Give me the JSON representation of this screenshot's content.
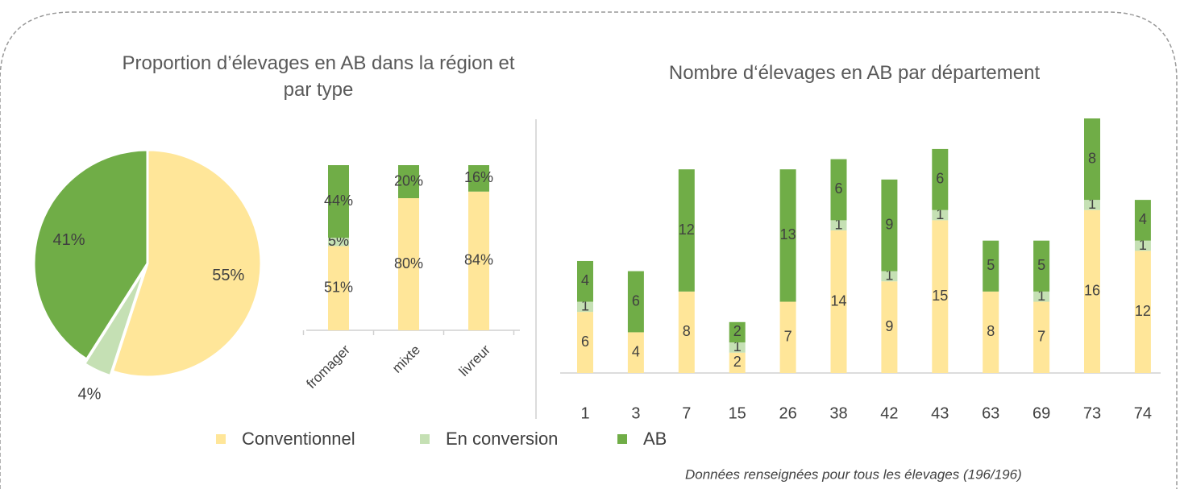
{
  "chart_data": [
    {
      "type": "pie",
      "title": "Proportion d’élevages en AB dans la région et par type",
      "values": [
        55,
        4,
        41
      ],
      "value_labels": [
        "55%",
        "4%",
        "41%"
      ],
      "colors": [
        "#ffe699",
        "#c5e0b4",
        "#70ad47"
      ]
    },
    {
      "type": "stacked_bar",
      "categories": [
        "fromager",
        "mixte",
        "livreur"
      ],
      "series": [
        {
          "name": "Conventionnel",
          "color": "#ffe699",
          "values": [
            51,
            80,
            84
          ],
          "value_labels": [
            "51%",
            "80%",
            "84%"
          ]
        },
        {
          "name": "En conversion",
          "color": "#c5e0b4",
          "values": [
            5,
            null,
            null
          ],
          "value_labels": [
            "5%",
            null,
            null
          ]
        },
        {
          "name": "AB",
          "color": "#70ad47",
          "values": [
            44,
            20,
            16
          ],
          "value_labels": [
            "44%",
            "20%",
            "16%"
          ]
        }
      ]
    },
    {
      "type": "stacked_bar",
      "title": "Nombre d‘élevages en AB par département",
      "categories": [
        "1",
        "3",
        "7",
        "15",
        "26",
        "38",
        "42",
        "43",
        "63",
        "69",
        "73",
        "74"
      ],
      "series": [
        {
          "name": "Conventionnel",
          "color": "#ffe699",
          "values": [
            6,
            4,
            8,
            2,
            7,
            14,
            9,
            15,
            8,
            7,
            16,
            12
          ]
        },
        {
          "name": "En conversion",
          "color": "#c5e0b4",
          "values": [
            1,
            null,
            null,
            1,
            null,
            1,
            1,
            1,
            null,
            1,
            1,
            1
          ]
        },
        {
          "name": "AB",
          "color": "#70ad47",
          "values": [
            4,
            6,
            12,
            2,
            13,
            6,
            9,
            6,
            5,
            5,
            8,
            4
          ]
        }
      ]
    }
  ],
  "note": "Données renseignées pour tous les élevages (196/196)"
}
